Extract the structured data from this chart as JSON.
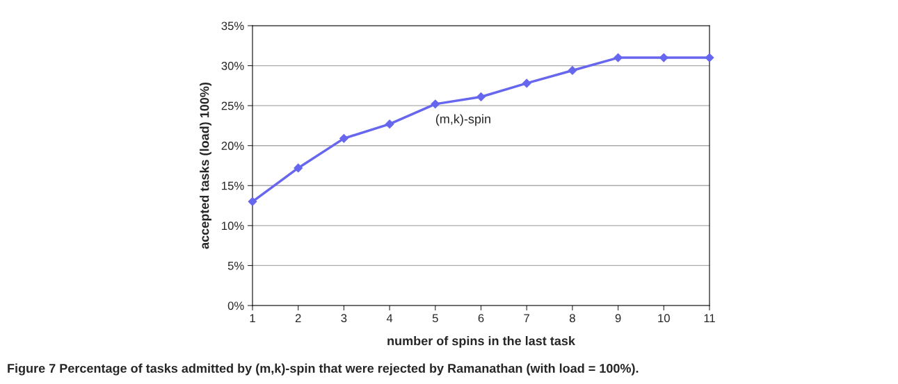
{
  "chart_data": {
    "type": "line",
    "xlabel": "number of spins in the last task",
    "ylabel": "accepted tasks (load) 100%)",
    "x": [
      1,
      2,
      3,
      4,
      5,
      6,
      7,
      8,
      9,
      10,
      11
    ],
    "series": [
      {
        "name": "(m,k)-spin",
        "color": "#6666ee",
        "values": [
          13.0,
          17.2,
          20.9,
          22.7,
          25.2,
          26.1,
          27.8,
          29.4,
          31.0,
          31.0,
          31.0
        ]
      }
    ],
    "xlim": [
      1,
      11
    ],
    "xticks": [
      1,
      2,
      3,
      4,
      5,
      6,
      7,
      8,
      9,
      10,
      11
    ],
    "ylim": [
      0,
      35
    ],
    "yticks": [
      {
        "value": 0,
        "label": "0%"
      },
      {
        "value": 5,
        "label": "5%"
      },
      {
        "value": 10,
        "label": "10%"
      },
      {
        "value": 15,
        "label": "15%"
      },
      {
        "value": 20,
        "label": "20%"
      },
      {
        "value": 25,
        "label": "25%"
      },
      {
        "value": 30,
        "label": "30%"
      },
      {
        "value": 35,
        "label": "35%"
      }
    ],
    "grid": "y",
    "marker": "diamond",
    "line_style": "solid",
    "legend": false,
    "annotations": [
      "Figure 7 Percentage of tasks admitted by (m,k)-spin that were rejected by Ramanathan (with load = 100%)."
    ]
  }
}
